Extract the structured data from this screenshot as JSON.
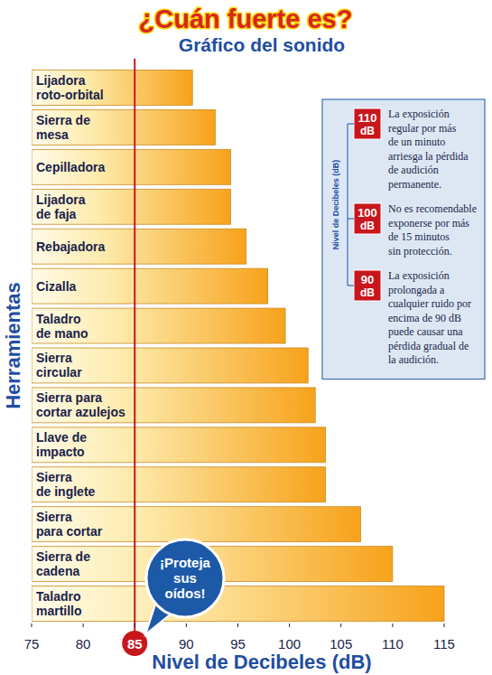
{
  "chart_data": {
    "type": "bar",
    "orientation": "horizontal",
    "title": "¿Cuán fuerte es?",
    "subtitle": "Gráfico del sonido",
    "x_label": "Nivel de Decibeles (dB)",
    "y_label": "Herramientas",
    "categories": [
      "Lijadora\nroto-orbital",
      "Sierra de\nmesa",
      "Cepilladora",
      "Lijadora\nde faja",
      "Rebajadora",
      "Cizalla",
      "Taladro\nde mano",
      "Sierra\ncircular",
      "Sierra para\ncortar azulejos",
      "Llave de\nimpacto",
      "Sierra\nde inglete",
      "Sierra\npara cortar",
      "Sierra de\ncadena",
      "Taladro\nmartillo"
    ],
    "values": [
      90.6,
      92.8,
      94.3,
      94.3,
      95.8,
      97.9,
      99.6,
      101.8,
      102.5,
      103.5,
      103.5,
      106.9,
      110,
      115
    ],
    "color": "#f7a21b",
    "xlim": [
      75,
      115
    ],
    "xticks": [
      75,
      80,
      85,
      90,
      95,
      100,
      105,
      110,
      115
    ],
    "grid": false,
    "reference_line": 85,
    "callout": "¡Proteja\nsus\noídos!",
    "annotations": {
      "box_label": "Nivel de Decibeles (dB)",
      "unit": "dB",
      "items": [
        {
          "value": 110,
          "text": "La exposición\nregular por más\nde un minuto\narriesga la pérdida\nde audición\npermanente."
        },
        {
          "value": 100,
          "text": "No es recomendable\nexponerse por más\nde 15 minutos\nsin protección."
        },
        {
          "value": 90,
          "text": "La exposición\nprolongada a\ncualquier ruido por\nencima de 90 dB\npuede causar una\npérdida gradual de\nla audición."
        }
      ]
    }
  }
}
